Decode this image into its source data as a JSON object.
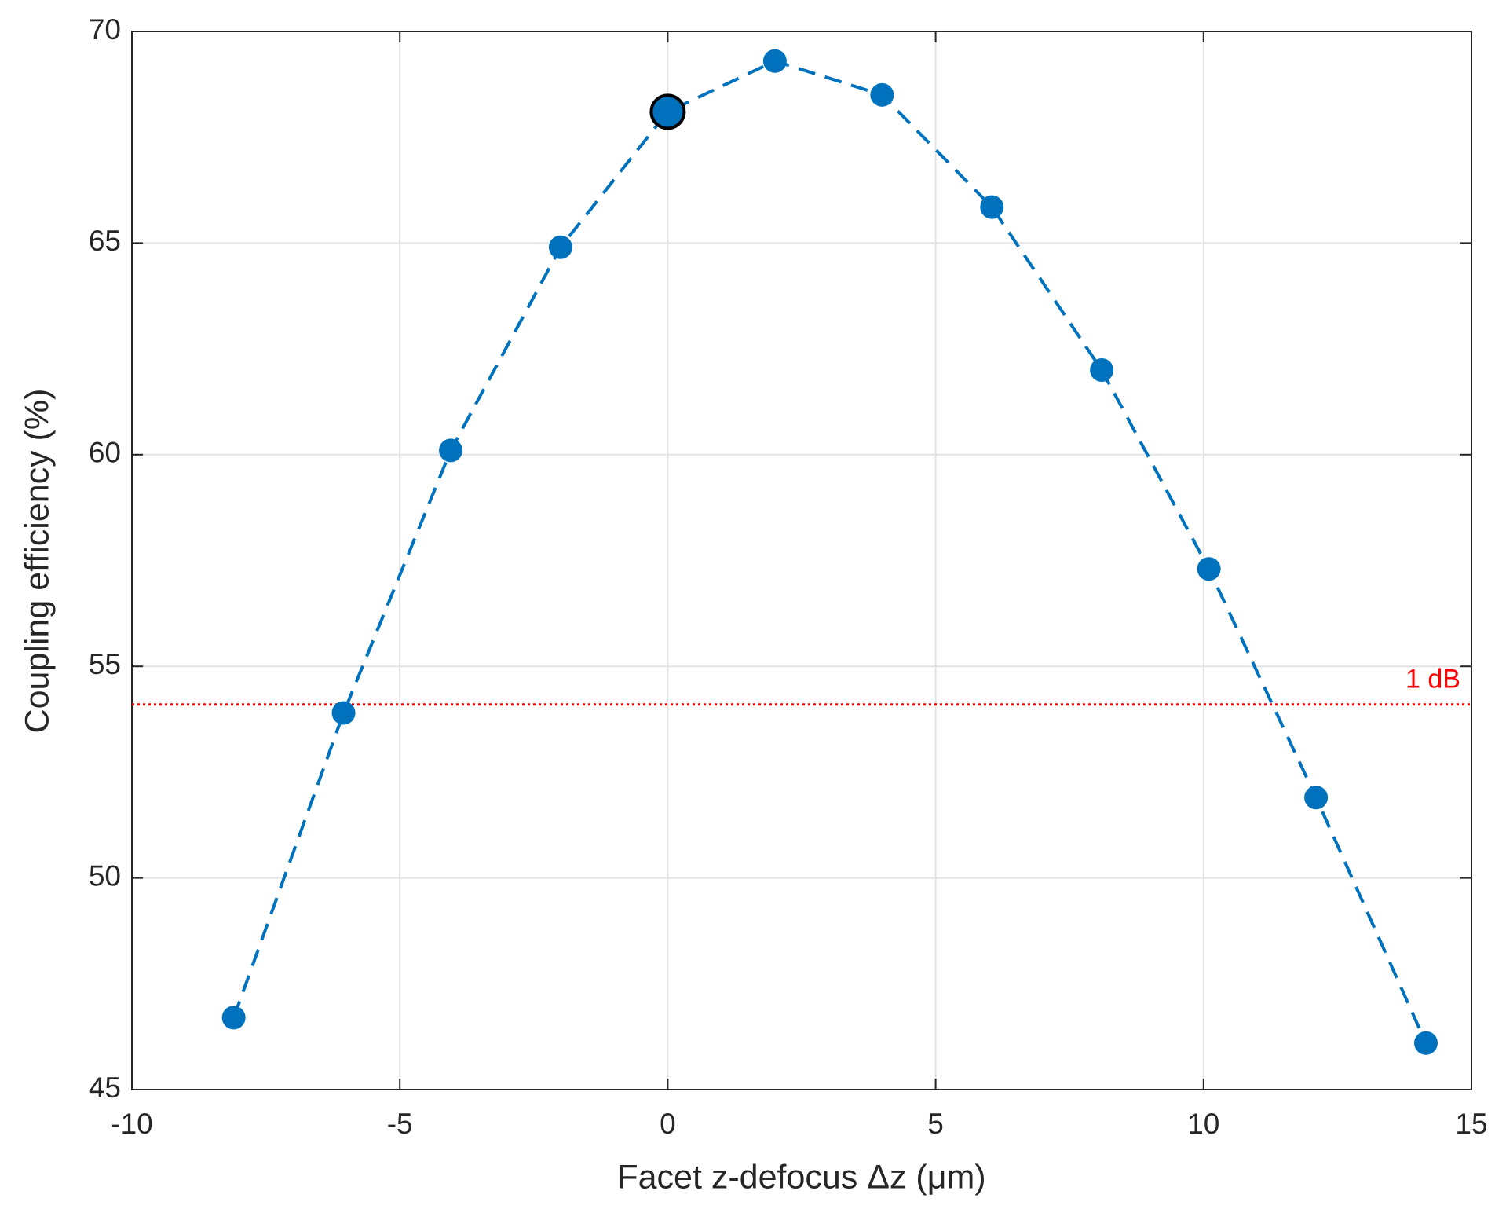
{
  "chart_data": {
    "type": "line",
    "x": [
      -8.1,
      -6.05,
      -4.05,
      -2,
      0,
      2,
      4,
      6.05,
      8.1,
      10.1,
      12.1,
      14.15
    ],
    "values": [
      46.7,
      53.9,
      60.1,
      64.9,
      68.1,
      69.3,
      68.5,
      65.85,
      62.0,
      57.3,
      51.9,
      46.1
    ],
    "color": "#0072bd",
    "highlight_index": 4,
    "xlabel": "Facet z-defocus Δz (μm)",
    "ylabel": "Coupling efficiency (%)",
    "xlim": [
      -10,
      15
    ],
    "xticks": [
      -10,
      -5,
      0,
      5,
      10,
      15
    ],
    "ylim": [
      45,
      70
    ],
    "yticks": [
      45,
      50,
      55,
      60,
      65,
      70
    ],
    "grid": true,
    "reference_line": {
      "value": 54.1,
      "label": "1 dB",
      "color": "#ff0000"
    }
  }
}
